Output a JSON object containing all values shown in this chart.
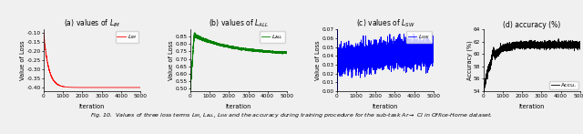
{
  "fig_width": 6.4,
  "fig_height": 1.47,
  "dpi": 100,
  "bg_color": "#f0f0f0",
  "panel_a": {
    "title": "(a) values of $L_{IM}$",
    "ylabel": "Value of Loss",
    "xlabel": "Iteration",
    "color": "#FF0000",
    "label": "$L_{IM}$",
    "ylim": [
      -0.42,
      -0.08
    ],
    "xlim": [
      0,
      5000
    ],
    "yticks": [
      -0.1,
      -0.15,
      -0.2,
      -0.25,
      -0.3,
      -0.35,
      -0.4
    ],
    "xticks": [
      0,
      1000,
      2000,
      3000,
      4000,
      5000
    ]
  },
  "panel_b": {
    "title": "(b) values of $L_{ALL}$",
    "ylabel": "Value of Loss",
    "xlabel": "Iteration",
    "color": "#008000",
    "label": "$L_{ALL}$",
    "ylim": [
      0.48,
      0.9
    ],
    "xlim": [
      0,
      5000
    ],
    "yticks": [
      0.5,
      0.55,
      0.6,
      0.65,
      0.7,
      0.75,
      0.8,
      0.85
    ],
    "xticks": [
      0,
      1000,
      2000,
      3000,
      4000,
      5000
    ]
  },
  "panel_c": {
    "title": "(c) values of $L_{SW}$",
    "ylabel": "Value of Loss",
    "xlabel": "Iteration",
    "color": "#0000FF",
    "label": "$L_{SW}$",
    "ylim": [
      0.0,
      0.07
    ],
    "xlim": [
      0,
      5000
    ],
    "yticks": [
      0.0,
      0.01,
      0.02,
      0.03,
      0.04,
      0.05,
      0.06,
      0.07
    ],
    "xticks": [
      0,
      1000,
      2000,
      3000,
      4000,
      5000
    ]
  },
  "panel_d": {
    "title": "(d) accuracy (%)",
    "ylabel": "Accuracy (%)",
    "xlabel": "Iteration",
    "color": "#000000",
    "label": "Accu.",
    "ylim": [
      54,
      64
    ],
    "xlim": [
      0,
      5000
    ],
    "yticks": [
      54,
      56,
      58,
      60,
      62,
      64
    ],
    "xticks": [
      0,
      1000,
      2000,
      3000,
      4000,
      5000
    ]
  },
  "caption": "Fig. 10.  Values of three loss terms $L_{IM}$, $L_{ALL}$, $L_{SW}$ and the accuracy during training procedure for the sub-task Ar$\\rightarrow$ Cl in Office-Home dataset."
}
